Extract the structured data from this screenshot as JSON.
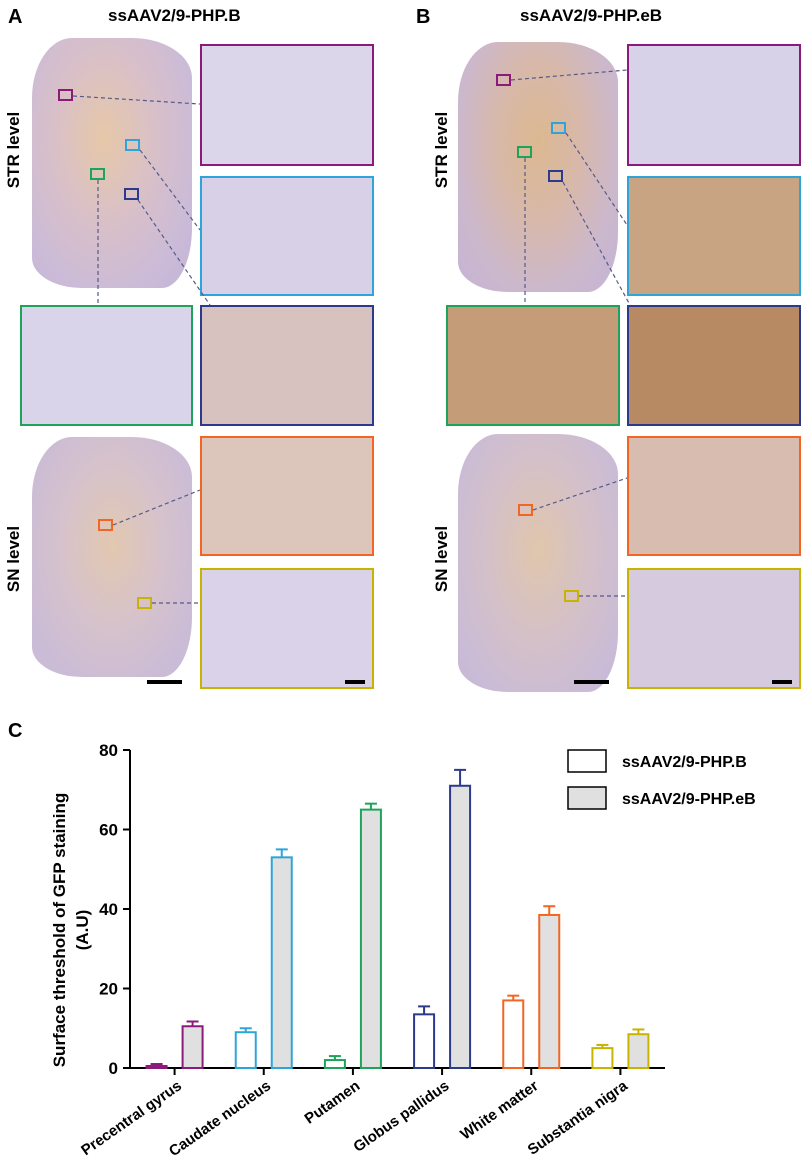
{
  "panels": {
    "A": {
      "letter": "A",
      "title": "ssAAV2/9-PHP.B"
    },
    "B": {
      "letter": "B",
      "title": "ssAAV2/9-PHP.eB"
    },
    "C": {
      "letter": "C"
    }
  },
  "levels": {
    "str": "STR level",
    "sn": "SN level"
  },
  "region_colors": {
    "precentral": "#8B1A7A",
    "caudate": "#2EA5DA",
    "putamen": "#1EA35A",
    "pallidus": "#2B3A8C",
    "white": "#F26522",
    "nigra": "#C8B400"
  },
  "chart_data": {
    "type": "bar",
    "categories": [
      "Precentral gyrus",
      "Caudate nucleus",
      "Putamen",
      "Globus pallidus",
      "White matter",
      "Substantia nigra"
    ],
    "ylabel": "Surface threshold of GFP staining (A.U)",
    "ylabel_line1": "Surface threshold of GFP staining",
    "ylabel_line2": "(A.U)",
    "ylim": [
      0,
      80
    ],
    "yticks": [
      0,
      20,
      40,
      60,
      80
    ],
    "legend_position": "top-right",
    "series": [
      {
        "name": "ssAAV2/9-PHP.B",
        "fill": "#ffffff",
        "values": [
          0.5,
          9,
          2,
          13.5,
          17,
          5
        ],
        "errors": [
          0.5,
          1,
          1,
          2,
          1.2,
          0.8
        ]
      },
      {
        "name": "ssAAV2/9-PHP.eB",
        "fill": "#e0e0e0",
        "values": [
          10.5,
          53,
          65,
          71,
          38.5,
          8.5
        ],
        "errors": [
          1.2,
          2,
          1.5,
          4,
          2.2,
          1.2
        ]
      }
    ],
    "bar_colors": [
      "#8B1A7A",
      "#2EA5DA",
      "#1EA35A",
      "#2B3A8C",
      "#F26522",
      "#C8B400"
    ]
  }
}
